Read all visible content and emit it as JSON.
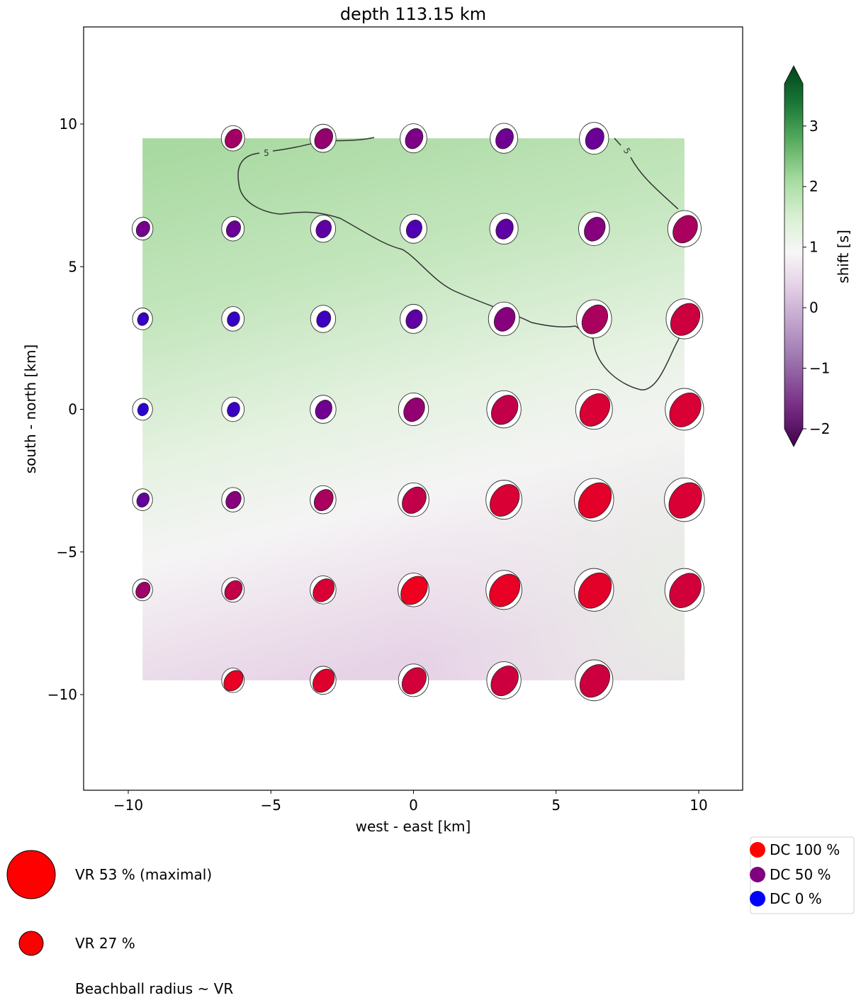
{
  "chart_data": {
    "type": "scatter",
    "title": "depth 113.15 km",
    "xlabel": "west - east [km]",
    "ylabel": "south - north [km]",
    "xlim": [
      -11.5,
      11.5
    ],
    "ylim": [
      -13.3,
      13.5
    ],
    "xticks": [
      -10,
      -5,
      0,
      5,
      10
    ],
    "yticks": [
      -10,
      -5,
      0,
      5,
      10
    ],
    "xtick_labels": [
      "−10",
      "−5",
      "0",
      "5",
      "10"
    ],
    "ytick_labels": [
      "−10",
      "−5",
      "0",
      "5",
      "10"
    ],
    "grid": false,
    "heatmap": {
      "extent_x": [
        -9.5,
        9.5
      ],
      "extent_y": [
        -9.5,
        9.5
      ],
      "description": "time shift field; greener to north, purple toward south-west"
    },
    "contour": {
      "level": 5,
      "label": "5",
      "color": "#333333"
    },
    "colorbar": {
      "label": "shift [s]",
      "range": [
        -2,
        3.7
      ],
      "ticks": [
        -2,
        -1,
        0,
        1,
        2,
        3
      ],
      "tick_labels": [
        "−2",
        "−1",
        "0",
        "1",
        "2",
        "3"
      ],
      "colormap": "PRGn",
      "extend": "both"
    },
    "beachball_color_scale": {
      "dc100": "#ff0000",
      "dc50": "#800080",
      "dc0": "#0000ff"
    },
    "points": [
      {
        "x": -6.33,
        "y": 9.5,
        "vr": 28,
        "dc": 62
      },
      {
        "x": -3.17,
        "y": 9.5,
        "vr": 31,
        "dc": 56
      },
      {
        "x": 0,
        "y": 9.5,
        "vr": 32,
        "dc": 45
      },
      {
        "x": 3.17,
        "y": 9.5,
        "vr": 33,
        "dc": 40
      },
      {
        "x": 6.33,
        "y": 9.5,
        "vr": 35,
        "dc": 38
      },
      {
        "x": -9.5,
        "y": 6.33,
        "vr": 25,
        "dc": 42
      },
      {
        "x": -6.33,
        "y": 6.33,
        "vr": 27,
        "dc": 38
      },
      {
        "x": -3.17,
        "y": 6.33,
        "vr": 30,
        "dc": 32
      },
      {
        "x": 0,
        "y": 6.33,
        "vr": 32,
        "dc": 25
      },
      {
        "x": 3.17,
        "y": 6.33,
        "vr": 34,
        "dc": 32
      },
      {
        "x": 6.33,
        "y": 6.33,
        "vr": 37,
        "dc": 50
      },
      {
        "x": 9.5,
        "y": 6.33,
        "vr": 40,
        "dc": 65
      },
      {
        "x": -9.5,
        "y": 3.17,
        "vr": 24,
        "dc": 15
      },
      {
        "x": -6.33,
        "y": 3.17,
        "vr": 27,
        "dc": 15
      },
      {
        "x": -3.17,
        "y": 3.17,
        "vr": 30,
        "dc": 18
      },
      {
        "x": 0,
        "y": 3.17,
        "vr": 32,
        "dc": 32
      },
      {
        "x": 3.17,
        "y": 3.17,
        "vr": 37,
        "dc": 50
      },
      {
        "x": 6.33,
        "y": 3.17,
        "vr": 42,
        "dc": 65
      },
      {
        "x": 9.5,
        "y": 3.17,
        "vr": 44,
        "dc": 80
      },
      {
        "x": -9.5,
        "y": 0,
        "vr": 24,
        "dc": 10
      },
      {
        "x": -6.33,
        "y": 0,
        "vr": 27,
        "dc": 16
      },
      {
        "x": -3.17,
        "y": 0,
        "vr": 31,
        "dc": 40
      },
      {
        "x": 0,
        "y": 0,
        "vr": 36,
        "dc": 55
      },
      {
        "x": 3.17,
        "y": 0,
        "vr": 41,
        "dc": 75
      },
      {
        "x": 6.33,
        "y": 0,
        "vr": 44,
        "dc": 85
      },
      {
        "x": 9.5,
        "y": 0,
        "vr": 46,
        "dc": 85
      },
      {
        "x": -9.5,
        "y": -3.17,
        "vr": 24,
        "dc": 35
      },
      {
        "x": -6.33,
        "y": -3.17,
        "vr": 27,
        "dc": 50
      },
      {
        "x": -3.17,
        "y": -3.17,
        "vr": 31,
        "dc": 65
      },
      {
        "x": 0,
        "y": -3.17,
        "vr": 37,
        "dc": 75
      },
      {
        "x": 3.17,
        "y": -3.17,
        "vr": 43,
        "dc": 85
      },
      {
        "x": 6.33,
        "y": -3.17,
        "vr": 47,
        "dc": 90
      },
      {
        "x": 9.5,
        "y": -3.17,
        "vr": 48,
        "dc": 85
      },
      {
        "x": -9.5,
        "y": -6.33,
        "vr": 24,
        "dc": 60
      },
      {
        "x": -6.33,
        "y": -6.33,
        "vr": 27,
        "dc": 75
      },
      {
        "x": -3.17,
        "y": -6.33,
        "vr": 31,
        "dc": 85
      },
      {
        "x": 0,
        "y": -6.33,
        "vr": 37,
        "dc": 95
      },
      {
        "x": 3.17,
        "y": -6.33,
        "vr": 43,
        "dc": 92
      },
      {
        "x": 6.33,
        "y": -6.33,
        "vr": 47,
        "dc": 90
      },
      {
        "x": 9.5,
        "y": -6.33,
        "vr": 47,
        "dc": 82
      },
      {
        "x": -6.33,
        "y": -9.5,
        "vr": 27,
        "dc": 92
      },
      {
        "x": -3.17,
        "y": -9.5,
        "vr": 31,
        "dc": 88
      },
      {
        "x": 0,
        "y": -9.5,
        "vr": 36,
        "dc": 82
      },
      {
        "x": 3.17,
        "y": -9.5,
        "vr": 41,
        "dc": 80
      },
      {
        "x": 6.33,
        "y": -9.5,
        "vr": 45,
        "dc": 80
      }
    ]
  },
  "legend_vr": {
    "max_label": "VR 53 % (maximal)",
    "max_value": 53,
    "min_label": "VR 27 %",
    "min_value": 27,
    "note": "Beachball radius ~ VR"
  },
  "legend_dc": {
    "items": [
      {
        "label": "DC 100 %",
        "color": "#ff0000"
      },
      {
        "label": "DC 50 %",
        "color": "#800080"
      },
      {
        "label": "DC 0 %",
        "color": "#0000ff"
      }
    ]
  }
}
